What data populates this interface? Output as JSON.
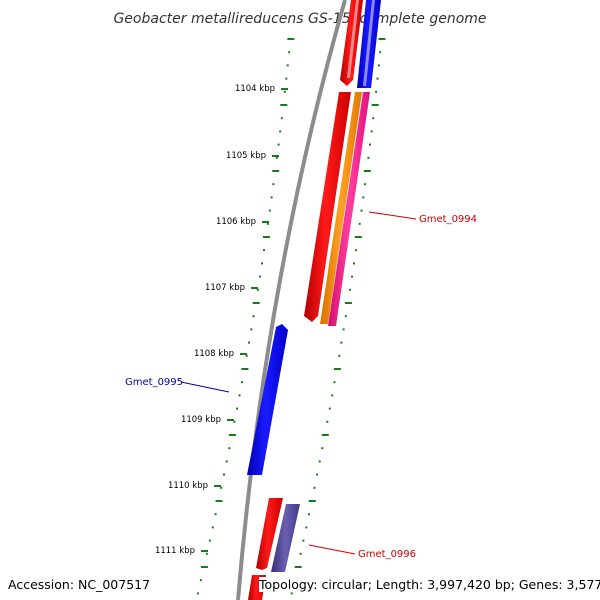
{
  "title": "Geobacter metallireducens GS-15, complete genome",
  "accession": "Accession: NC_007517",
  "topology": "Topology: circular; Length: 3,997,420 bp; Genes: 3,577",
  "ticks": [
    "1104 kbp",
    "1105 kbp",
    "1106 kbp",
    "1107 kbp",
    "1108 kbp",
    "1109 kbp",
    "1110 kbp",
    "1111 kbp"
  ],
  "genes": [
    {
      "label": "Gmet_0994",
      "color": "#cc0000"
    },
    {
      "label": "Gmet_0995",
      "color": "#0000aa"
    },
    {
      "label": "Gmet_0996",
      "color": "#cc0000"
    }
  ],
  "colors": {
    "backbone": "#8c8c8c",
    "tick": "#1a7a1a",
    "red": "#ff0000",
    "blue": "#0000ff",
    "orange": "#ff8c00",
    "pink": "#ff1493",
    "purple": "#4a3d8f"
  }
}
